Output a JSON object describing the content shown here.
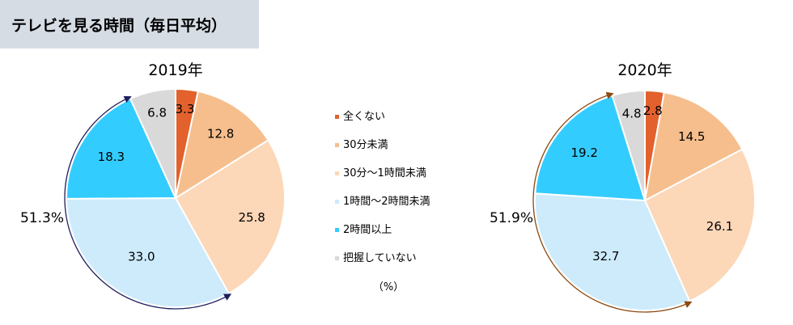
{
  "title": "テレビを見る時間（毎日平均）",
  "legend": {
    "items": [
      {
        "label": "全くない",
        "color": "#e2612c"
      },
      {
        "label": "30分未満",
        "color": "#f6be8c"
      },
      {
        "label": "30分～1時間未満",
        "color": "#fcd7b8"
      },
      {
        "label": "1時間～2時間未満",
        "color": "#cdebfb"
      },
      {
        "label": "2時間以上",
        "color": "#33ccff"
      },
      {
        "label": "把握していない",
        "color": "#d9d9d9"
      }
    ],
    "unit": "（%）"
  },
  "chart_data": [
    {
      "type": "pie",
      "title": "2019年",
      "categories": [
        "全くない",
        "30分未満",
        "30分～1時間未満",
        "1時間～2時間未満",
        "2時間以上",
        "把握していない"
      ],
      "values": [
        3.3,
        12.8,
        25.8,
        33.0,
        18.3,
        6.8
      ],
      "value_labels": [
        "3.3",
        "12.8",
        "25.8",
        "33.0",
        "18.3",
        "6.8"
      ],
      "annotation": "51.3%",
      "arrow_color": "#1f1f5e"
    },
    {
      "type": "pie",
      "title": "2020年",
      "categories": [
        "全くない",
        "30分未満",
        "30分～1時間未満",
        "1時間～2時間未満",
        "2時間以上",
        "把握していない"
      ],
      "values": [
        2.8,
        14.5,
        26.1,
        32.7,
        19.2,
        4.8
      ],
      "value_labels": [
        "2.8",
        "14.5",
        "26.1",
        "32.7",
        "19.2",
        "4.8"
      ],
      "annotation": "51.9%",
      "arrow_color": "#8c4a10"
    }
  ]
}
